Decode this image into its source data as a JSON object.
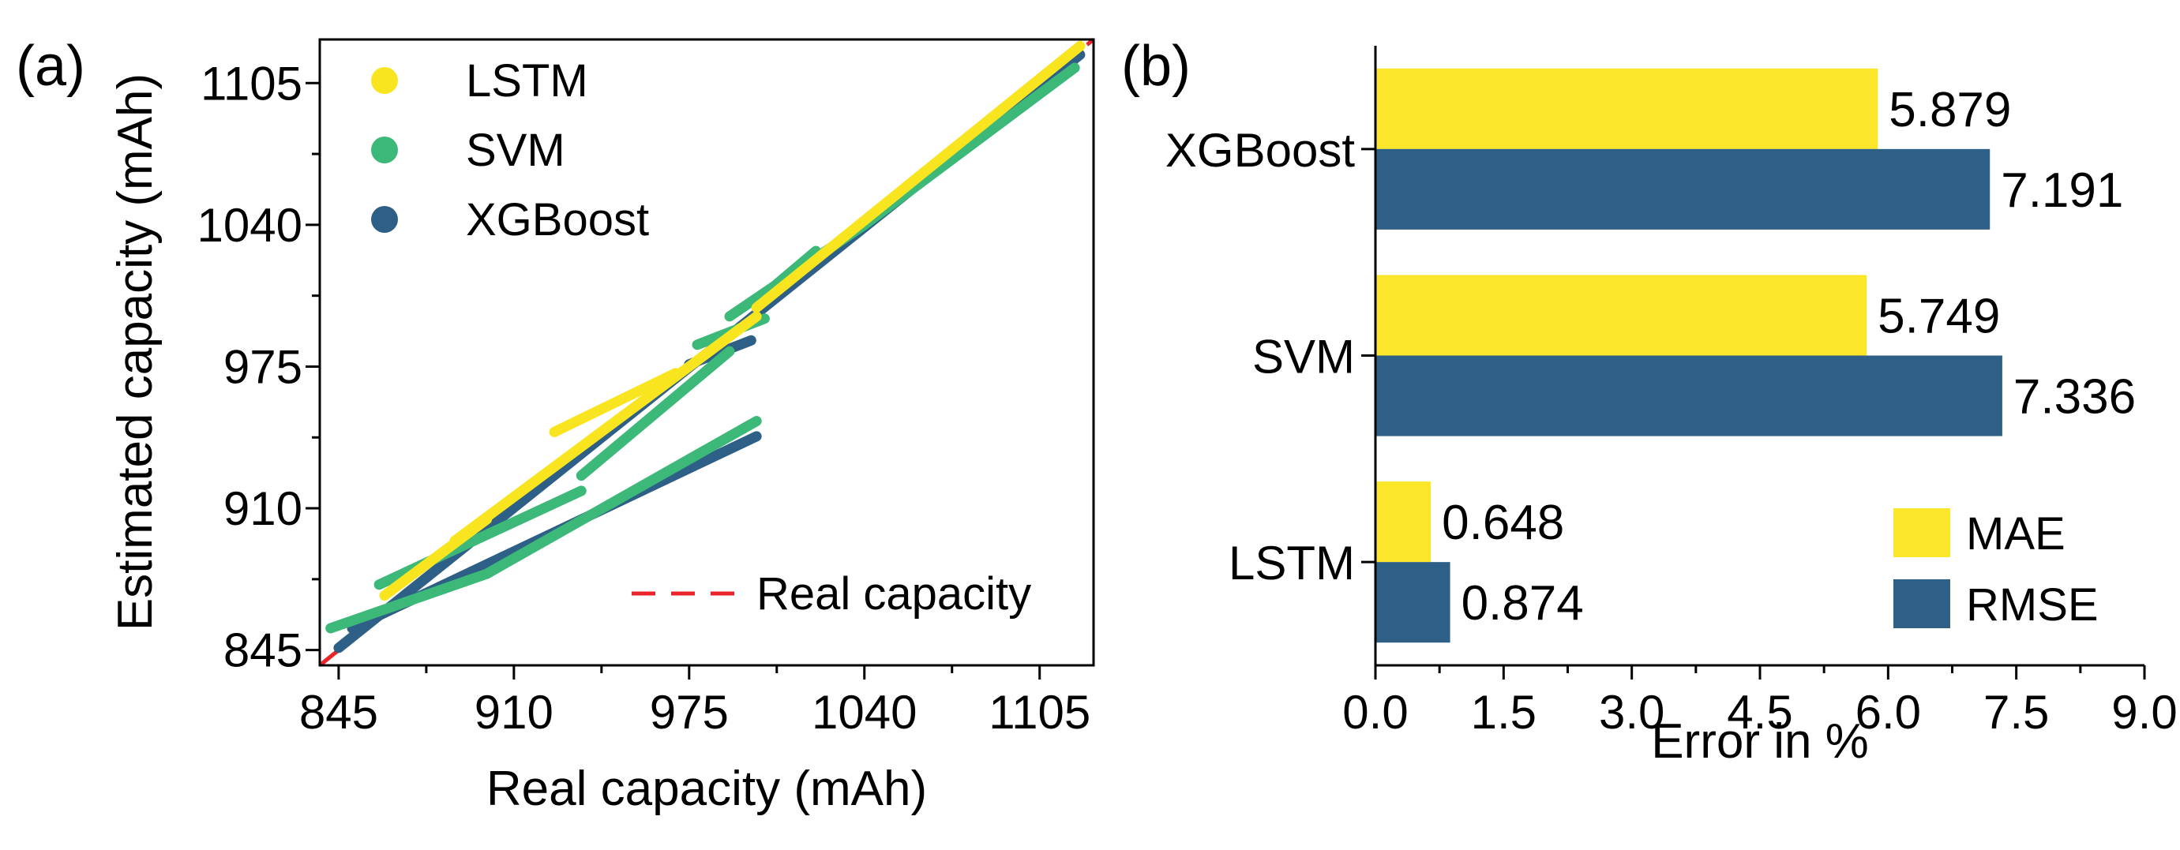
{
  "chart_data": [
    {
      "type": "scatter",
      "panel_label": "(a)",
      "xlabel": "Real capacity (mAh)",
      "ylabel": "Estimated capacity (mAh)",
      "xlim": [
        838,
        1125
      ],
      "ylim": [
        838,
        1125
      ],
      "xticks": [
        845,
        910,
        975,
        1040,
        1105
      ],
      "yticks": [
        845,
        910,
        975,
        1040,
        1105
      ],
      "xtick_labels": [
        "845",
        "910",
        "975",
        "1040",
        "1105"
      ],
      "ytick_labels": [
        "845",
        "910",
        "975",
        "1040",
        "1105"
      ],
      "legend": {
        "position": "top-left"
      },
      "reference_line": {
        "name": "Real capacity",
        "x": [
          838,
          1125
        ],
        "y": [
          838,
          1125
        ],
        "color": "#e8262a",
        "style": "dashed"
      },
      "series": [
        {
          "name": "XGBoost",
          "color": "#2e5f86",
          "segments": [
            {
              "x": [
                845,
                1120
              ],
              "y": [
                846,
                1118
              ]
            },
            {
              "x": [
                850,
                1000
              ],
              "y": [
                855,
                943
              ]
            },
            {
              "x": [
                975,
                998
              ],
              "y": [
                976,
                987
              ]
            }
          ]
        },
        {
          "name": "SVM",
          "color": "#3cb878",
          "segments": [
            {
              "x": [
                842,
                900
              ],
              "y": [
                855,
                880
              ]
            },
            {
              "x": [
                900,
                1000
              ],
              "y": [
                880,
                950
              ]
            },
            {
              "x": [
                860,
                935
              ],
              "y": [
                875,
                918
              ]
            },
            {
              "x": [
                935,
                990
              ],
              "y": [
                925,
                982
              ]
            },
            {
              "x": [
                978,
                1003
              ],
              "y": [
                985,
                997
              ]
            },
            {
              "x": [
                990,
                1040
              ],
              "y": [
                998,
                1040
              ]
            },
            {
              "x": [
                1000,
                1022
              ],
              "y": [
                1005,
                1028
              ]
            },
            {
              "x": [
                1040,
                1118
              ],
              "y": [
                1040,
                1112
              ]
            }
          ]
        },
        {
          "name": "LSTM",
          "color": "#f9e51f",
          "segments": [
            {
              "x": [
                862,
                900
              ],
              "y": [
                870,
                905
              ]
            },
            {
              "x": [
                888,
                1000
              ],
              "y": [
                895,
                998
              ]
            },
            {
              "x": [
                925,
                970
              ],
              "y": [
                945,
                972
              ]
            },
            {
              "x": [
                1000,
                1120
              ],
              "y": [
                1002,
                1122
              ]
            }
          ]
        }
      ]
    },
    {
      "type": "bar",
      "orientation": "horizontal",
      "panel_label": "(b)",
      "xlabel": "Error in %",
      "xlim": [
        0,
        9
      ],
      "xticks": [
        0,
        1.5,
        3,
        4.5,
        6,
        7.5,
        9
      ],
      "xtick_labels": [
        "0.0",
        "1.5",
        "3.0",
        "4.5",
        "6.0",
        "7.5",
        "9.0"
      ],
      "categories": [
        "XGBoost",
        "SVM",
        "LSTM"
      ],
      "legend": {
        "position": "bottom-right"
      },
      "series": [
        {
          "name": "MAE",
          "color": "#fbe62a",
          "values": [
            5.879,
            5.749,
            0.648
          ],
          "labels": [
            "5.879",
            "5.749",
            "0.648"
          ]
        },
        {
          "name": "RMSE",
          "color": "#2e5f86",
          "values": [
            7.191,
            7.336,
            0.874
          ],
          "labels": [
            "7.191",
            "7.336",
            "0.874"
          ]
        }
      ]
    }
  ]
}
